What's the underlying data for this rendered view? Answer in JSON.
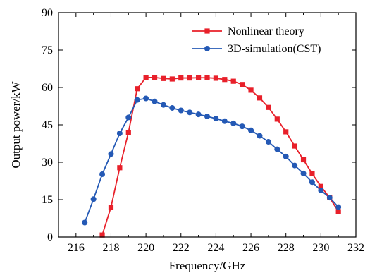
{
  "chart_data": {
    "type": "line",
    "xlabel": "Frequency/GHz",
    "ylabel": "Output power/kW",
    "xlim": [
      215,
      232
    ],
    "ylim": [
      0,
      90
    ],
    "xticks": [
      216,
      218,
      220,
      222,
      224,
      226,
      228,
      230,
      232
    ],
    "yticks": [
      0,
      15,
      30,
      45,
      60,
      75,
      90
    ],
    "grid": false,
    "legend": "top-right",
    "series": [
      {
        "name": "Nonlinear theory",
        "color": "#e8202a",
        "marker": "square",
        "x": [
          217.5,
          218,
          218.5,
          219,
          219.5,
          220,
          220.5,
          221,
          221.5,
          222,
          222.5,
          223,
          223.5,
          224,
          224.5,
          225,
          225.5,
          226,
          226.5,
          227,
          227.5,
          228,
          228.5,
          229,
          229.5,
          230,
          230.5,
          231
        ],
        "y": [
          0.8,
          12,
          27.8,
          42,
          59.5,
          64,
          64,
          63.6,
          63.4,
          63.8,
          63.8,
          63.9,
          63.9,
          63.7,
          63.2,
          62.5,
          61.2,
          58.9,
          55.8,
          52,
          47.3,
          42.2,
          36.5,
          31,
          25.4,
          20.3,
          15.8,
          10.2
        ]
      },
      {
        "name": "3D-simulation(CST)",
        "color": "#2459b5",
        "marker": "circle",
        "x": [
          216.5,
          217,
          217.5,
          218,
          218.5,
          219,
          219.5,
          220,
          220.5,
          221,
          221.5,
          222,
          222.5,
          223,
          223.5,
          224,
          224.5,
          225,
          225.5,
          226,
          226.5,
          227,
          227.5,
          228,
          228.5,
          229,
          229.5,
          230,
          230.5,
          231
        ],
        "y": [
          5.8,
          15.2,
          25.2,
          33.3,
          41.6,
          48,
          55,
          55.6,
          54.4,
          53,
          51.8,
          50.8,
          50,
          49.2,
          48.4,
          47.5,
          46.5,
          45.6,
          44.4,
          42.8,
          40.6,
          38.2,
          35.2,
          32.3,
          28.7,
          25.5,
          22,
          18.7,
          15.8,
          12
        ]
      }
    ]
  }
}
